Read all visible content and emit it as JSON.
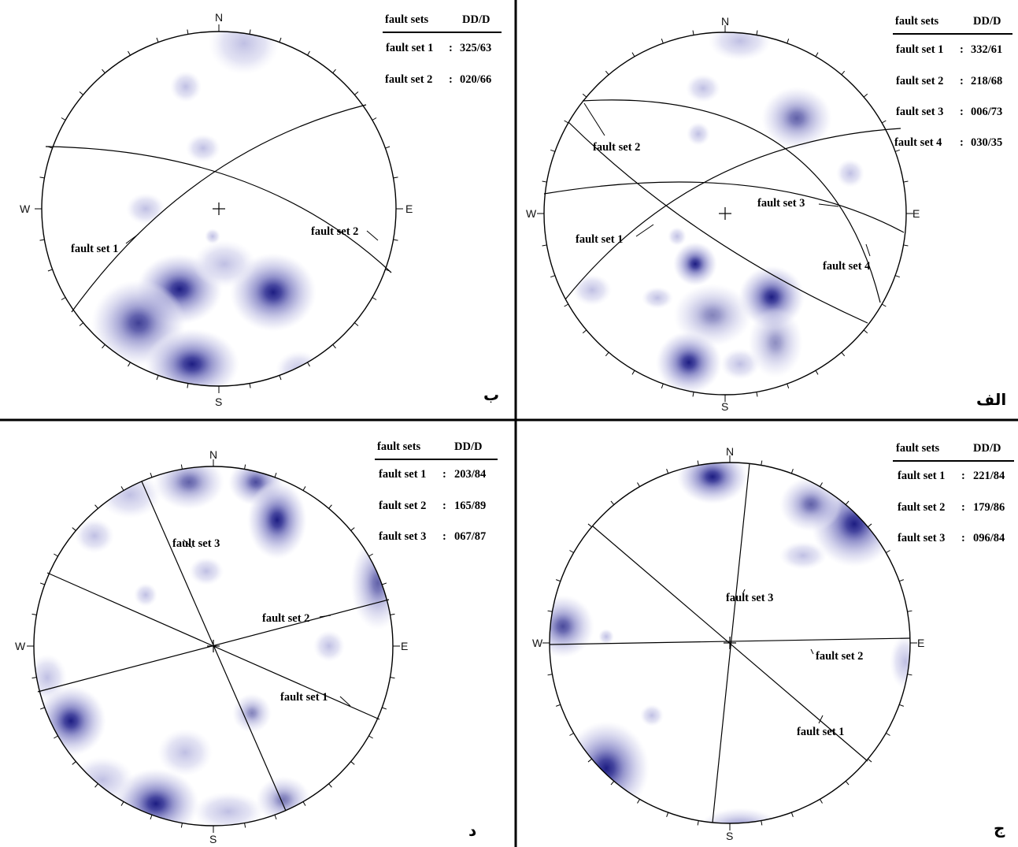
{
  "panels": [
    {
      "id": "b",
      "letter": "ب",
      "table": {
        "col_name": "fault sets",
        "col_value": "DD/D",
        "rows": [
          {
            "name": "fault set 1",
            "sep": ":",
            "value": "325/63"
          },
          {
            "name": "fault set 2",
            "sep": ":",
            "value": "020/66"
          }
        ]
      },
      "planes": [
        {
          "label": "fault set 1"
        },
        {
          "label": "fault set 2"
        }
      ],
      "cardinals": {
        "n": "N",
        "s": "S",
        "e": "E",
        "w": "W"
      }
    },
    {
      "id": "alef",
      "letter": "الف",
      "table": {
        "col_name": "fault sets",
        "col_value": "DD/D",
        "rows": [
          {
            "name": "fault set 1",
            "sep": ":",
            "value": "332/61"
          },
          {
            "name": "fault set 2",
            "sep": ":",
            "value": "218/68"
          },
          {
            "name": "fault set 3",
            "sep": ":",
            "value": "006/73"
          },
          {
            "name": "fault set 4",
            "sep": ":",
            "value": "030/35"
          }
        ]
      },
      "planes": [
        {
          "label": "fault set 1"
        },
        {
          "label": "fault set 2"
        },
        {
          "label": "fault set 3"
        },
        {
          "label": "fault set 4"
        }
      ],
      "cardinals": {
        "n": "N",
        "s": "S",
        "e": "E",
        "w": "W"
      }
    },
    {
      "id": "dal",
      "letter": "د",
      "table": {
        "col_name": "fault sets",
        "col_value": "DD/D",
        "rows": [
          {
            "name": "fault set 1",
            "sep": ":",
            "value": "203/84"
          },
          {
            "name": "fault set 2",
            "sep": ":",
            "value": "165/89"
          },
          {
            "name": "fault set 3",
            "sep": ":",
            "value": "067/87"
          }
        ]
      },
      "planes": [
        {
          "label": "fault set 1"
        },
        {
          "label": "fault set 2"
        },
        {
          "label": "fault set 3"
        }
      ],
      "cardinals": {
        "n": "N",
        "s": "S",
        "e": "E",
        "w": "W"
      }
    },
    {
      "id": "jim",
      "letter": "ج",
      "table": {
        "col_name": "fault sets",
        "col_value": "DD/D",
        "rows": [
          {
            "name": "fault set 1",
            "sep": ":",
            "value": "221/84"
          },
          {
            "name": "fault set 2",
            "sep": ":",
            "value": "179/86"
          },
          {
            "name": "fault set 3",
            "sep": ":",
            "value": "096/84"
          }
        ]
      },
      "planes": [
        {
          "label": "fault set 1"
        },
        {
          "label": "fault set 2"
        },
        {
          "label": "fault set 3"
        }
      ],
      "cardinals": {
        "n": "N",
        "s": "S",
        "e": "E",
        "w": "W"
      }
    }
  ],
  "colors": {
    "contour_light": "#e9e9f6",
    "contour_mid": "#a9a9da",
    "contour_dark": "#3a3a96",
    "contour_max": "#15157a",
    "line": "#000000",
    "background": "#ffffff"
  }
}
